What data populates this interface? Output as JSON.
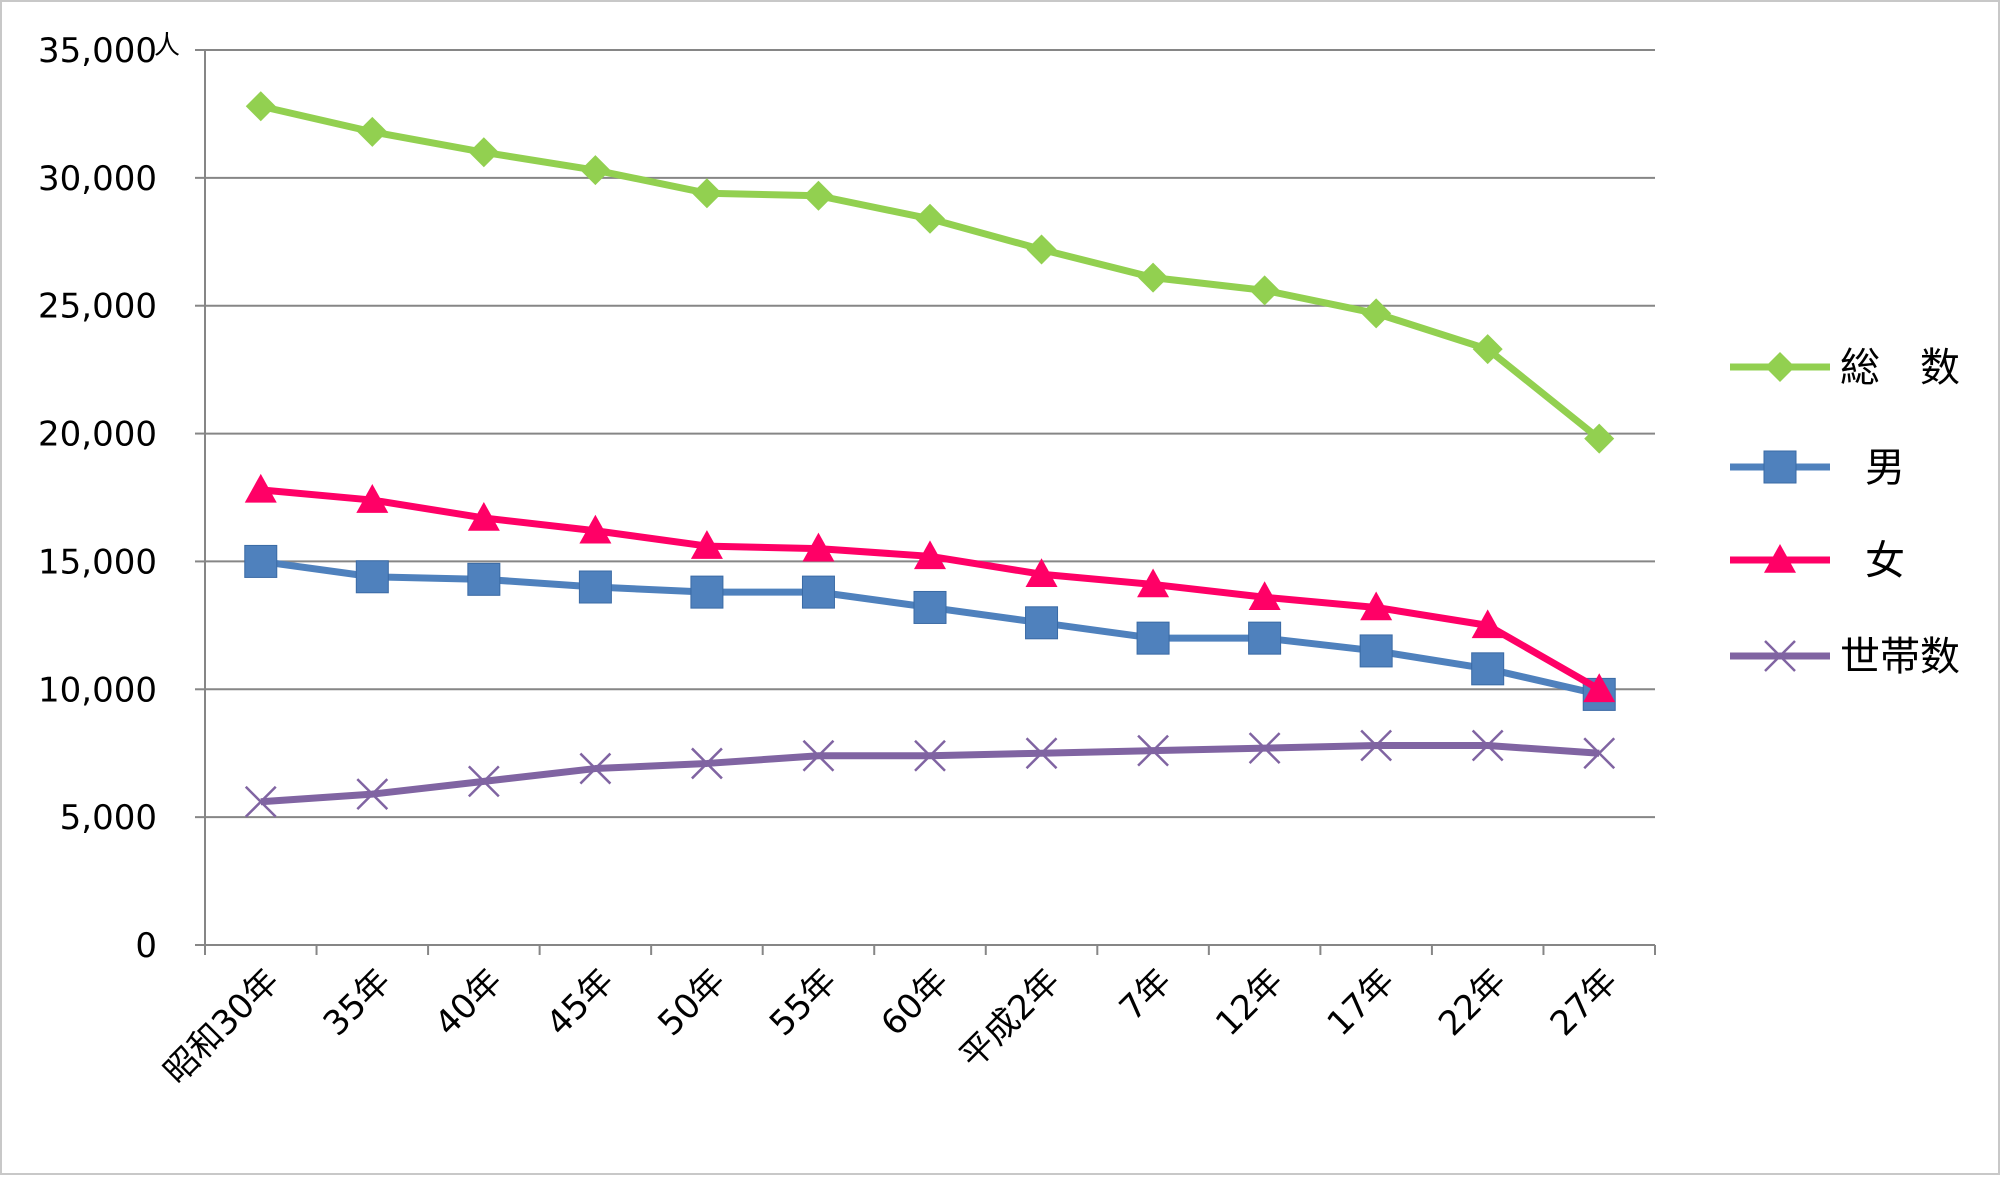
{
  "chart_data": {
    "type": "line",
    "title": "",
    "xlabel": "",
    "ylabel": "",
    "y_unit": "人",
    "ylim": [
      0,
      35000
    ],
    "y_ticks": [
      0,
      5000,
      10000,
      15000,
      20000,
      25000,
      30000,
      35000
    ],
    "y_tick_labels": [
      "0",
      "5,000",
      "10,000",
      "15,000",
      "20,000",
      "25,000",
      "30,000",
      "35,000"
    ],
    "grid": true,
    "legend_position": "right",
    "categories": [
      "昭和30年",
      "35年",
      "40年",
      "45年",
      "50年",
      "55年",
      "60年",
      "平成2年",
      "7年",
      "12年",
      "17年",
      "22年",
      "27年"
    ],
    "series": [
      {
        "name": "総　数",
        "color": "#92d050",
        "marker": "diamond",
        "values": [
          32800,
          31800,
          31000,
          30300,
          29400,
          29300,
          28400,
          27200,
          26100,
          25600,
          24700,
          23300,
          19800
        ]
      },
      {
        "name": "男",
        "color": "#4f81bd",
        "marker": "square",
        "values": [
          15000,
          14400,
          14300,
          14000,
          13800,
          13800,
          13200,
          12600,
          12000,
          12000,
          11500,
          10800,
          9800
        ]
      },
      {
        "name": "女",
        "color": "#ff0066",
        "marker": "triangle",
        "values": [
          17800,
          17400,
          16700,
          16200,
          15600,
          15500,
          15200,
          14500,
          14100,
          13600,
          13200,
          12500,
          10000
        ]
      },
      {
        "name": "世帯数",
        "color": "#8064a2",
        "marker": "x",
        "values": [
          5600,
          5900,
          6400,
          6900,
          7100,
          7400,
          7400,
          7500,
          7600,
          7700,
          7800,
          7800,
          7500
        ]
      }
    ]
  }
}
